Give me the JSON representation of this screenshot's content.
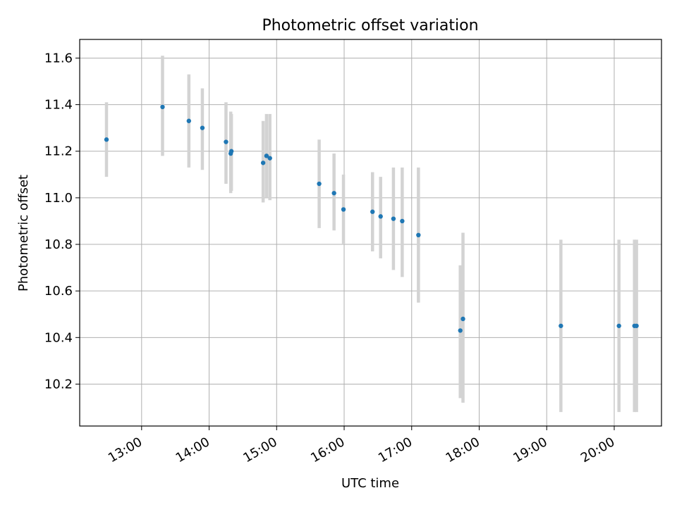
{
  "chart_data": {
    "type": "scatter",
    "title": "Photometric offset variation",
    "xlabel": "UTC time",
    "ylabel": "Photometric offset",
    "x_unit": "hour of day (UTC)",
    "xlim": [
      12.083,
      20.7
    ],
    "ylim": [
      10.02,
      11.68
    ],
    "x_ticks": [
      {
        "value": 13,
        "label": "13:00"
      },
      {
        "value": 14,
        "label": "14:00"
      },
      {
        "value": 15,
        "label": "15:00"
      },
      {
        "value": 16,
        "label": "16:00"
      },
      {
        "value": 17,
        "label": "17:00"
      },
      {
        "value": 18,
        "label": "18:00"
      },
      {
        "value": 19,
        "label": "19:00"
      },
      {
        "value": 20,
        "label": "20:00"
      }
    ],
    "y_ticks": [
      {
        "value": 10.2,
        "label": "10.2"
      },
      {
        "value": 10.4,
        "label": "10.4"
      },
      {
        "value": 10.6,
        "label": "10.6"
      },
      {
        "value": 10.8,
        "label": "10.8"
      },
      {
        "value": 11.0,
        "label": "11.0"
      },
      {
        "value": 11.2,
        "label": "11.2"
      },
      {
        "value": 11.4,
        "label": "11.4"
      },
      {
        "value": 11.6,
        "label": "11.6"
      }
    ],
    "grid": true,
    "point_color": "#1f77b4",
    "errorbar_color": "#d3d3d3",
    "points": [
      {
        "x": 12.48,
        "y": 11.25,
        "lo": 11.09,
        "hi": 11.41
      },
      {
        "x": 13.31,
        "y": 11.39,
        "lo": 11.18,
        "hi": 11.61
      },
      {
        "x": 13.7,
        "y": 11.33,
        "lo": 11.13,
        "hi": 11.53
      },
      {
        "x": 13.9,
        "y": 11.3,
        "lo": 11.12,
        "hi": 11.47
      },
      {
        "x": 14.25,
        "y": 11.24,
        "lo": 11.06,
        "hi": 11.41
      },
      {
        "x": 14.32,
        "y": 11.19,
        "lo": 11.02,
        "hi": 11.37
      },
      {
        "x": 14.33,
        "y": 11.2,
        "lo": 11.03,
        "hi": 11.36
      },
      {
        "x": 14.8,
        "y": 11.15,
        "lo": 10.98,
        "hi": 11.33
      },
      {
        "x": 14.85,
        "y": 11.18,
        "lo": 11.0,
        "hi": 11.36
      },
      {
        "x": 14.9,
        "y": 11.17,
        "lo": 10.99,
        "hi": 11.36
      },
      {
        "x": 15.63,
        "y": 11.06,
        "lo": 10.87,
        "hi": 11.25
      },
      {
        "x": 15.85,
        "y": 11.02,
        "lo": 10.86,
        "hi": 11.19
      },
      {
        "x": 15.99,
        "y": 10.95,
        "lo": 10.8,
        "hi": 11.1
      },
      {
        "x": 16.42,
        "y": 10.94,
        "lo": 10.77,
        "hi": 11.11
      },
      {
        "x": 16.54,
        "y": 10.92,
        "lo": 10.74,
        "hi": 11.09
      },
      {
        "x": 16.73,
        "y": 10.91,
        "lo": 10.69,
        "hi": 11.13
      },
      {
        "x": 16.86,
        "y": 10.9,
        "lo": 10.66,
        "hi": 11.13
      },
      {
        "x": 17.1,
        "y": 10.84,
        "lo": 10.55,
        "hi": 11.13
      },
      {
        "x": 17.72,
        "y": 10.43,
        "lo": 10.14,
        "hi": 10.71
      },
      {
        "x": 17.76,
        "y": 10.48,
        "lo": 10.12,
        "hi": 10.85
      },
      {
        "x": 19.21,
        "y": 10.45,
        "lo": 10.08,
        "hi": 10.82
      },
      {
        "x": 20.07,
        "y": 10.45,
        "lo": 10.08,
        "hi": 10.82
      },
      {
        "x": 20.3,
        "y": 10.45,
        "lo": 10.08,
        "hi": 10.82
      },
      {
        "x": 20.33,
        "y": 10.45,
        "lo": 10.08,
        "hi": 10.82
      }
    ]
  }
}
